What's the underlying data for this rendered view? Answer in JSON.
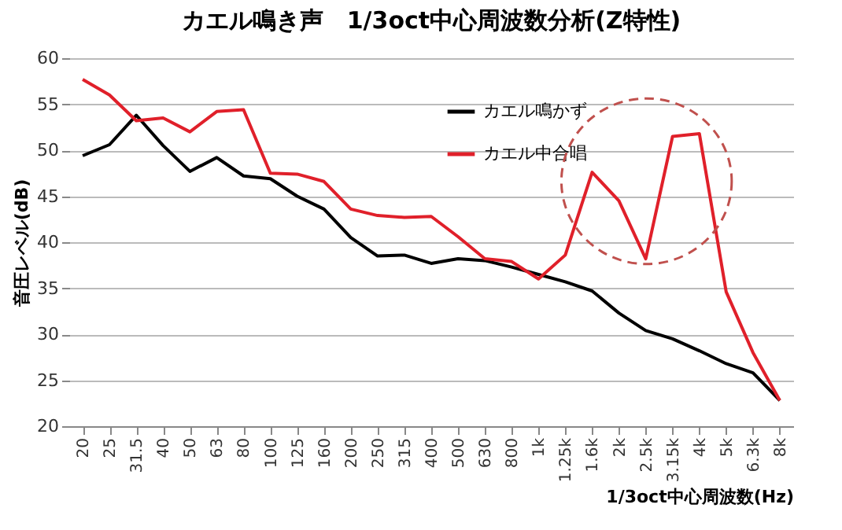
{
  "chart_data": {
    "type": "line",
    "title": "カエル鳴き声　1/3oct中心周波数分析(Z特性)",
    "xlabel": "1/3oct中心周波数(Hz)",
    "ylabel": "音圧レベル(dB)",
    "categories": [
      "20",
      "25",
      "31.5",
      "40",
      "50",
      "63",
      "80",
      "100",
      "125",
      "160",
      "200",
      "250",
      "315",
      "400",
      "500",
      "630",
      "800",
      "1k",
      "1.25k",
      "1.6k",
      "2k",
      "2.5k",
      "3.15k",
      "4k",
      "5k",
      "6.3k",
      "8k"
    ],
    "series": [
      {
        "name": "カエル鳴かず",
        "color": "#000000",
        "values": [
          49.4,
          50.6,
          53.8,
          50.5,
          47.7,
          49.2,
          47.2,
          46.9,
          45,
          43.6,
          40.5,
          38.5,
          38.6,
          37.7,
          38.2,
          38,
          37.3,
          36.5,
          35.7,
          34.7,
          32.3,
          30.4,
          29.5,
          28.2,
          26.8,
          25.8,
          22.8
        ]
      },
      {
        "name": "カエル中合唱",
        "color": "#e0202a",
        "values": [
          57.7,
          56,
          53.2,
          53.5,
          52,
          54.2,
          54.4,
          47.5,
          47.4,
          46.6,
          43.6,
          42.9,
          42.7,
          42.8,
          40.6,
          38.2,
          37.9,
          36,
          38.6,
          47.6,
          44.5,
          38.2,
          51.5,
          51.8,
          34.6,
          28,
          22.8
        ]
      }
    ],
    "ylim": [
      20,
      60
    ],
    "yticks": [
      20,
      25,
      30,
      35,
      40,
      45,
      50,
      55,
      60
    ],
    "grid": "y",
    "legend": "top right",
    "marker": "none",
    "line_style": "solid"
  }
}
